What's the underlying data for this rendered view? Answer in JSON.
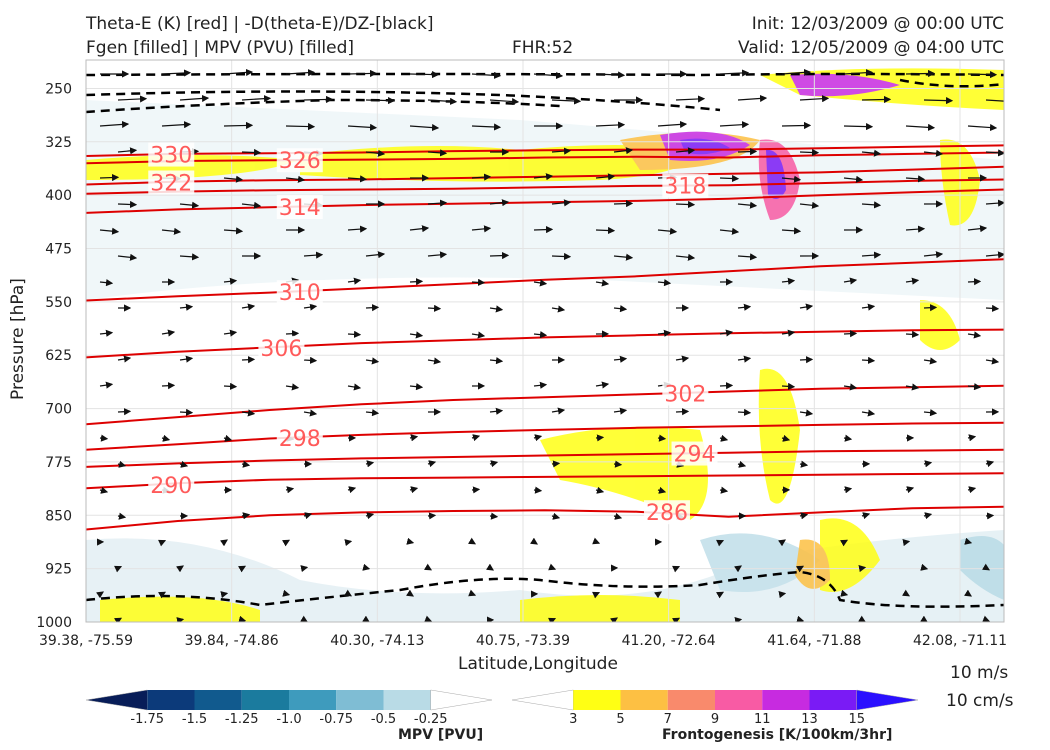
{
  "header": {
    "line1_left": "Theta-E (K) [red] | -D(theta-E)/DZ-[black]",
    "line2_left": "Fgen [filled] | MPV (PVU) [filled]",
    "fhr": "FHR:52",
    "init": "Init: 12/03/2009 @ 00:00 UTC",
    "valid": "Valid: 12/05/2009 @ 04:00 UTC"
  },
  "chart_data": {
    "type": "cross-section",
    "xlabel": "Latitude,Longitude",
    "ylabel": "Pressure [hPa]",
    "x_ticks": [
      "39.38, -75.59",
      "39.84, -74.86",
      "40.30, -74.13",
      "40.75, -73.39",
      "41.20, -72.64",
      "41.64, -71.88",
      "42.08, -71.11"
    ],
    "y_ticks": [
      250,
      325,
      400,
      475,
      550,
      625,
      700,
      775,
      850,
      925,
      1000
    ],
    "ylim": [
      1000,
      210
    ],
    "y_inverted": true,
    "grid": true,
    "theta_e_contours": [
      {
        "label": "330",
        "color": "#dd0000",
        "points": [
          [
            0,
            345
          ],
          [
            0.1,
            342
          ],
          [
            0.2,
            341
          ],
          [
            0.3,
            340
          ],
          [
            0.4,
            338
          ],
          [
            0.5,
            337
          ],
          [
            0.6,
            336
          ],
          [
            0.7,
            336
          ],
          [
            0.8,
            334
          ],
          [
            0.9,
            332
          ],
          [
            1,
            330
          ]
        ]
      },
      {
        "label": "326",
        "color": "#dd0000",
        "points": [
          [
            0,
            355
          ],
          [
            0.1,
            352
          ],
          [
            0.2,
            351
          ],
          [
            0.3,
            350
          ],
          [
            0.4,
            349
          ],
          [
            0.5,
            347
          ],
          [
            0.6,
            346
          ],
          [
            0.7,
            347
          ],
          [
            0.8,
            344
          ],
          [
            0.9,
            342
          ],
          [
            1,
            340
          ]
        ]
      },
      {
        "label": "322",
        "color": "#dd0000",
        "points": [
          [
            0,
            385
          ],
          [
            0.1,
            381
          ],
          [
            0.2,
            379
          ],
          [
            0.3,
            378
          ],
          [
            0.4,
            376
          ],
          [
            0.5,
            374
          ],
          [
            0.6,
            372
          ],
          [
            0.7,
            370
          ],
          [
            0.8,
            368
          ],
          [
            0.9,
            364
          ],
          [
            1,
            360
          ]
        ]
      },
      {
        "label": "318",
        "color": "#dd0000",
        "points": [
          [
            0,
            398
          ],
          [
            0.1,
            395
          ],
          [
            0.2,
            393
          ],
          [
            0.3,
            392
          ],
          [
            0.4,
            391
          ],
          [
            0.5,
            389
          ],
          [
            0.6,
            387
          ],
          [
            0.7,
            386
          ],
          [
            0.8,
            383
          ],
          [
            0.9,
            380
          ],
          [
            1,
            378
          ]
        ]
      },
      {
        "label": "314",
        "color": "#dd0000",
        "points": [
          [
            0,
            425
          ],
          [
            0.1,
            420
          ],
          [
            0.2,
            417
          ],
          [
            0.3,
            414
          ],
          [
            0.4,
            412
          ],
          [
            0.5,
            410
          ],
          [
            0.6,
            408
          ],
          [
            0.7,
            405
          ],
          [
            0.8,
            400
          ],
          [
            0.9,
            396
          ],
          [
            1,
            392
          ]
        ]
      },
      {
        "label": "310",
        "color": "#dd0000",
        "points": [
          [
            0,
            548
          ],
          [
            0.1,
            542
          ],
          [
            0.2,
            537
          ],
          [
            0.3,
            531
          ],
          [
            0.4,
            525
          ],
          [
            0.5,
            519
          ],
          [
            0.6,
            514
          ],
          [
            0.7,
            507
          ],
          [
            0.8,
            500
          ],
          [
            0.9,
            495
          ],
          [
            1,
            490
          ]
        ]
      },
      {
        "label": "306",
        "color": "#dd0000",
        "points": [
          [
            0,
            628
          ],
          [
            0.1,
            620
          ],
          [
            0.2,
            614
          ],
          [
            0.3,
            608
          ],
          [
            0.4,
            604
          ],
          [
            0.5,
            600
          ],
          [
            0.6,
            597
          ],
          [
            0.7,
            594
          ],
          [
            0.8,
            592
          ],
          [
            0.9,
            590
          ],
          [
            1,
            589
          ]
        ]
      },
      {
        "label": "302",
        "color": "#dd0000",
        "points": [
          [
            0,
            722
          ],
          [
            0.1,
            712
          ],
          [
            0.2,
            702
          ],
          [
            0.3,
            694
          ],
          [
            0.4,
            688
          ],
          [
            0.5,
            684
          ],
          [
            0.6,
            680
          ],
          [
            0.7,
            676
          ],
          [
            0.8,
            672
          ],
          [
            0.9,
            670
          ],
          [
            1,
            668
          ]
        ]
      },
      {
        "label": "298",
        "color": "#dd0000",
        "points": [
          [
            0,
            758
          ],
          [
            0.1,
            750
          ],
          [
            0.2,
            742
          ],
          [
            0.3,
            737
          ],
          [
            0.4,
            733
          ],
          [
            0.5,
            730
          ],
          [
            0.6,
            727
          ],
          [
            0.7,
            725
          ],
          [
            0.8,
            723
          ],
          [
            0.9,
            721
          ],
          [
            1,
            720
          ]
        ]
      },
      {
        "label": "294",
        "color": "#dd0000",
        "points": [
          [
            0,
            782
          ],
          [
            0.1,
            777
          ],
          [
            0.2,
            773
          ],
          [
            0.3,
            770
          ],
          [
            0.4,
            768
          ],
          [
            0.5,
            766
          ],
          [
            0.6,
            764
          ],
          [
            0.7,
            762
          ],
          [
            0.8,
            760
          ],
          [
            0.9,
            759
          ],
          [
            1,
            758
          ]
        ]
      },
      {
        "label": "290",
        "color": "#dd0000",
        "points": [
          [
            0,
            812
          ],
          [
            0.1,
            805
          ],
          [
            0.2,
            800
          ],
          [
            0.3,
            798
          ],
          [
            0.4,
            797
          ],
          [
            0.5,
            796
          ],
          [
            0.6,
            795
          ],
          [
            0.7,
            794
          ],
          [
            0.8,
            793
          ],
          [
            0.9,
            792
          ],
          [
            1,
            791
          ]
        ]
      },
      {
        "label": "286",
        "color": "#dd0000",
        "points": [
          [
            0,
            870
          ],
          [
            0.1,
            858
          ],
          [
            0.2,
            850
          ],
          [
            0.3,
            846
          ],
          [
            0.4,
            844
          ],
          [
            0.5,
            843
          ],
          [
            0.6,
            845
          ],
          [
            0.7,
            852
          ],
          [
            0.8,
            846
          ],
          [
            0.9,
            840
          ],
          [
            1,
            838
          ]
        ]
      }
    ],
    "mpv_colorbar": {
      "title": "MPV [PVU]",
      "colors": [
        "#081d58",
        "#0c3a7a",
        "#115a8e",
        "#1b7b9e",
        "#3e9bbd",
        "#7fbdd4",
        "#b9dbe6",
        "#ffffff"
      ],
      "tick_labels": [
        "-1.75",
        "-1.5",
        "-1.25",
        "-1.0",
        "-0.75",
        "-0.5",
        "-0.25"
      ]
    },
    "fgen_colorbar": {
      "title": "Frontogenesis [K/100km/3hr]",
      "colors": [
        "#ffffff",
        "#ffff14",
        "#fdc043",
        "#f98a6c",
        "#f85ba4",
        "#c72be0",
        "#7a1bf5",
        "#2a10ff"
      ],
      "tick_labels": [
        "3",
        "5",
        "7",
        "9",
        "11",
        "13",
        "15"
      ]
    }
  },
  "wind_key": {
    "speed": "10 m/s",
    "vertical": "10 cm/s"
  }
}
